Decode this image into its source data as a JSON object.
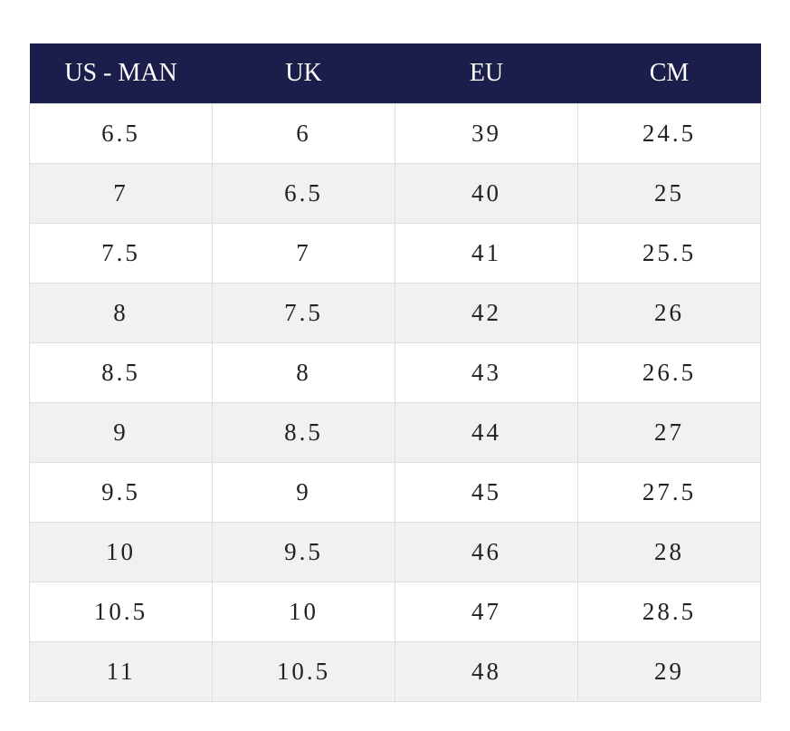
{
  "table": {
    "headers": [
      "US - MAN",
      "UK",
      "EU",
      "CM"
    ],
    "rows": [
      [
        "6.5",
        "6",
        "39",
        "24.5"
      ],
      [
        "7",
        "6.5",
        "40",
        "25"
      ],
      [
        "7.5",
        "7",
        "41",
        "25.5"
      ],
      [
        "8",
        "7.5",
        "42",
        "26"
      ],
      [
        "8.5",
        "8",
        "43",
        "26.5"
      ],
      [
        "9",
        "8.5",
        "44",
        "27"
      ],
      [
        "9.5",
        "9",
        "45",
        "27.5"
      ],
      [
        "10",
        "9.5",
        "46",
        "28"
      ],
      [
        "10.5",
        "10",
        "47",
        "28.5"
      ],
      [
        "11",
        "10.5",
        "48",
        "29"
      ]
    ]
  },
  "colors": {
    "header_background": "#1b1d4a",
    "header_text": "#ffffff",
    "row_alt_background": "#f1f1f1",
    "grid_line": "#dedede"
  }
}
